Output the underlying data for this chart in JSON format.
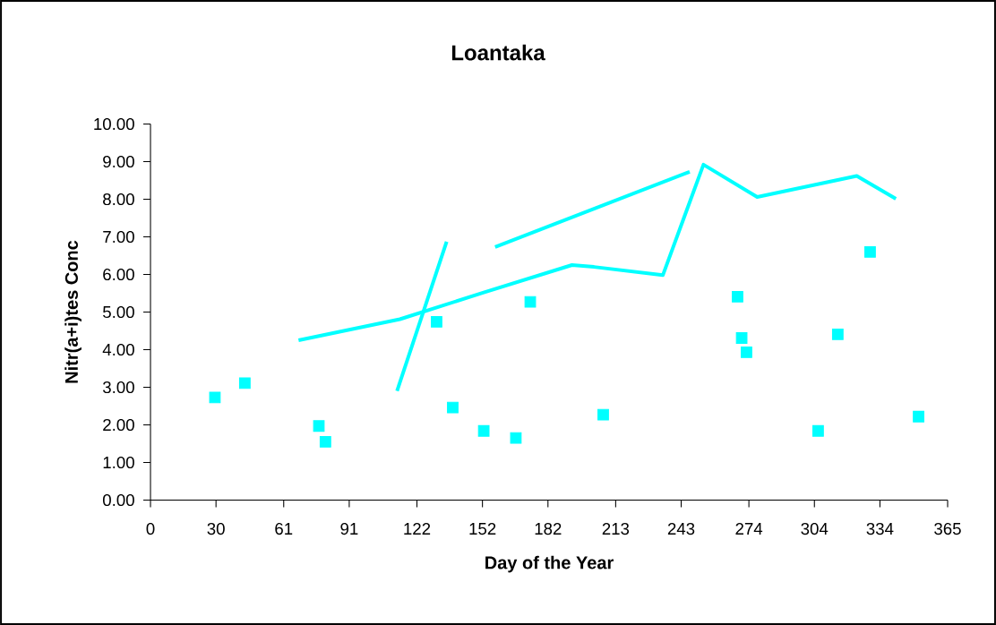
{
  "chart_data": {
    "type": "scatter",
    "title": "Loantaka",
    "xlabel": "Day of the Year",
    "ylabel": "Nitr(a+i)tes Conc",
    "xlim": [
      0,
      365
    ],
    "xticks": [
      0,
      30,
      61,
      91,
      122,
      152,
      182,
      213,
      243,
      274,
      304,
      334,
      365
    ],
    "ylim": [
      0,
      10
    ],
    "yticks": [
      {
        "value": 0,
        "label": "0.00"
      },
      {
        "value": 1,
        "label": "1.00"
      },
      {
        "value": 2,
        "label": "2.00"
      },
      {
        "value": 3,
        "label": "3.00"
      },
      {
        "value": 4,
        "label": "4.00"
      },
      {
        "value": 5,
        "label": "5.00"
      },
      {
        "value": 6,
        "label": "6.00"
      },
      {
        "value": 7,
        "label": "7.00"
      },
      {
        "value": 8,
        "label": "8.00"
      },
      {
        "value": 9,
        "label": "9.00"
      },
      {
        "value": 10,
        "label": "10.00"
      }
    ],
    "grid": false,
    "series": [
      {
        "marker": "square",
        "color": "#00ffff",
        "x": [
          29.5,
          43.2,
          77.1,
          80.1,
          131,
          138.4,
          152.6,
          167.3,
          173.9,
          207.3,
          268.8,
          270.7,
          272.9,
          305.7,
          314.7,
          329.5,
          351.7
        ],
        "values": [
          2.73,
          3.11,
          1.97,
          1.55,
          4.74,
          2.46,
          1.84,
          1.65,
          5.27,
          2.27,
          5.41,
          4.31,
          3.93,
          1.84,
          4.41,
          6.6,
          2.22
        ]
      },
      {
        "type": "line",
        "marker": "none",
        "line_style": "solid",
        "color": "#00ffff",
        "x": [
          67.8,
          114.2,
          152.6,
          193,
          203.1,
          234.6,
          253.2,
          277.8,
          323.4,
          341.3
        ],
        "values": [
          4.25,
          4.81,
          5.52,
          6.25,
          6.2,
          5.98,
          8.92,
          8.06,
          8.62,
          8.01
        ]
      },
      {
        "type": "line",
        "marker": "none",
        "line_style": "solid",
        "color": "#00ffff",
        "x": [
          112.9,
          135.6
        ],
        "values": [
          2.9,
          6.87
        ]
      },
      {
        "type": "line",
        "marker": "none",
        "line_style": "solid",
        "color": "#00ffff",
        "x": [
          157.8,
          246.9
        ],
        "values": [
          6.73,
          8.73
        ]
      }
    ]
  }
}
